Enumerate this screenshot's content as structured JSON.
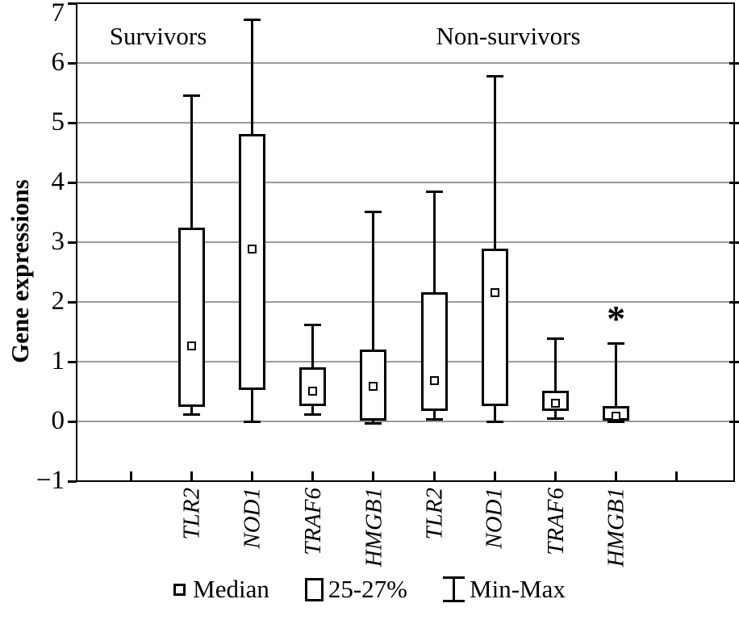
{
  "figure": {
    "group_labels": [
      "Survivors",
      "Non-survivors"
    ]
  },
  "chart_data": {
    "type": "boxplot",
    "title": "",
    "xlabel": "",
    "ylabel": "Gene expressions",
    "ylim": [
      -1,
      7
    ],
    "yticks": [
      7,
      6,
      5,
      4,
      3,
      2,
      1,
      0,
      -1
    ],
    "ytick_labels": [
      "7",
      "6",
      "5",
      "4",
      "3",
      "2",
      "1",
      "0",
      "−1"
    ],
    "gridlines": [
      6,
      5,
      4,
      3,
      2,
      1,
      0
    ],
    "grid": "horizontal gray lines at integer values",
    "legend": [
      "Median",
      "25-27%",
      "Min-Max"
    ],
    "legend_position": "bottom-center",
    "group_labels": [
      "Survivors",
      "Non-survivors"
    ],
    "categories": [
      "TLR2",
      "NOD1",
      "TRAF6",
      "HMGB1",
      "TLR2",
      "NOD1",
      "TRAF6",
      "HMGB1"
    ],
    "series": [
      {
        "gene": "TLR2",
        "group": "Survivors",
        "min": 0.12,
        "q1": 0.24,
        "median": 1.27,
        "q3": 3.24,
        "max": 5.45
      },
      {
        "gene": "NOD1",
        "group": "Survivors",
        "min": 0.0,
        "q1": 0.53,
        "median": 2.88,
        "q3": 4.81,
        "max": 6.72
      },
      {
        "gene": "TRAF6",
        "group": "Survivors",
        "min": 0.12,
        "q1": 0.26,
        "median": 0.51,
        "q3": 0.91,
        "max": 1.61
      },
      {
        "gene": "HMGB1",
        "group": "Survivors",
        "min": -0.04,
        "q1": 0.02,
        "median": 0.59,
        "q3": 1.2,
        "max": 3.51
      },
      {
        "gene": "TLR2",
        "group": "Non-survivors",
        "min": 0.04,
        "q1": 0.18,
        "median": 0.68,
        "q3": 2.16,
        "max": 3.85
      },
      {
        "gene": "NOD1",
        "group": "Non-survivors",
        "min": 0.0,
        "q1": 0.26,
        "median": 2.15,
        "q3": 2.89,
        "max": 5.78
      },
      {
        "gene": "TRAF6",
        "group": "Non-survivors",
        "min": 0.05,
        "q1": 0.18,
        "median": 0.3,
        "q3": 0.51,
        "max": 1.39
      },
      {
        "gene": "HMGB1",
        "group": "Non-survivors",
        "min": 0.0,
        "q1": 0.02,
        "median": 0.09,
        "q3": 0.26,
        "max": 1.3,
        "annotation": "*"
      }
    ]
  }
}
